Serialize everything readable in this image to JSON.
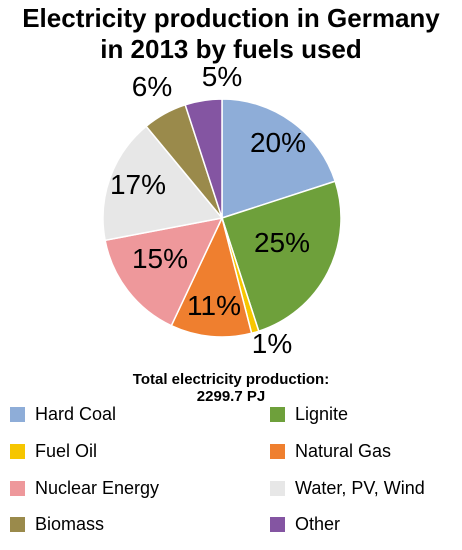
{
  "title_line1": "Electricity production in Germany",
  "title_line2": "in 2013 by fuels used",
  "total_label": "Total electricity production:",
  "total_value": "2299.7 PJ",
  "chart_data": {
    "type": "pie",
    "title": "Electricity production in Germany in 2013 by fuels used",
    "unit": "%",
    "total": "2299.7 PJ",
    "legend_position": "bottom",
    "slices": [
      {
        "name": "Hard Coal",
        "value": 20,
        "label": "20%",
        "color": "#8EADD8"
      },
      {
        "name": "Lignite",
        "value": 25,
        "label": "25%",
        "color": "#6EA03B"
      },
      {
        "name": "Fuel Oil",
        "value": 1,
        "label": "1%",
        "color": "#F6C600"
      },
      {
        "name": "Natural Gas",
        "value": 11,
        "label": "11%",
        "color": "#EF7F2F"
      },
      {
        "name": "Nuclear Energy",
        "value": 15,
        "label": "15%",
        "color": "#EE989B"
      },
      {
        "name": "Water, PV, Wind",
        "value": 17,
        "label": "17%",
        "color": "#E7E7E7"
      },
      {
        "name": "Biomass",
        "value": 6,
        "label": "6%",
        "color": "#9A8A4B"
      },
      {
        "name": "Other",
        "value": 5,
        "label": "5%",
        "color": "#8455A2"
      }
    ]
  }
}
